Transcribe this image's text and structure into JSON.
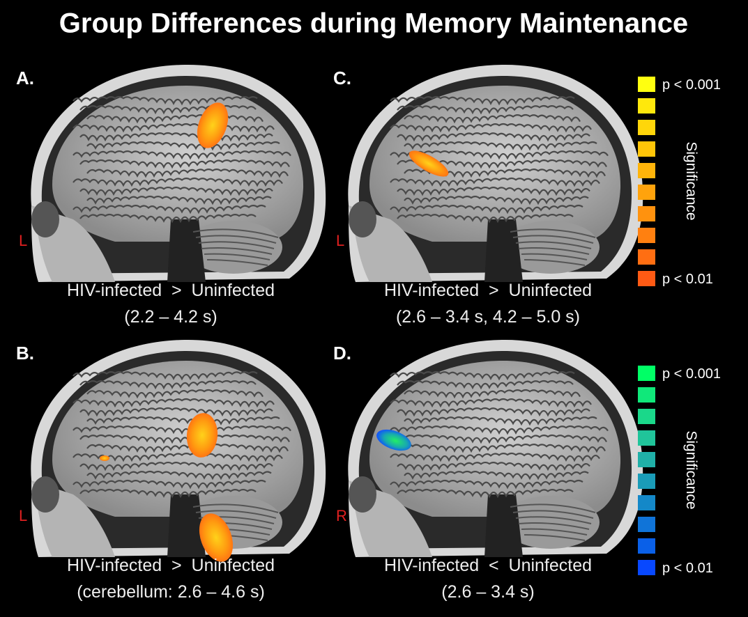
{
  "title": "Group Differences during Memory Maintenance",
  "panels": [
    {
      "letter": "A.",
      "side": "L",
      "caption": [
        "HIV-infected  >  Uninfected",
        "(2.2 – 4.2 s)"
      ]
    },
    {
      "letter": "C.",
      "side": "L",
      "caption": [
        "HIV-infected  >  Uninfected",
        "(2.6 – 3.4 s, 4.2 – 5.0 s)"
      ]
    },
    {
      "letter": "B.",
      "side": "L",
      "caption": [
        "HIV-infected  >  Uninfected",
        "(cerebellum: 2.6 – 4.6 s)"
      ]
    },
    {
      "letter": "D.",
      "side": "R",
      "caption": [
        "HIV-infected  <  Uninfected",
        "(2.6 – 3.4 s)"
      ]
    }
  ],
  "colorbars": [
    {
      "top": "p < 0.001",
      "bottom": "p < 0.01",
      "label": "Significance",
      "colors": [
        "#ffff10",
        "#ffe80c",
        "#ffd60a",
        "#ffc508",
        "#ffb40a",
        "#ffa30c",
        "#ff920e",
        "#ff8010",
        "#ff6e12",
        "#ff5a14"
      ]
    },
    {
      "top": "p < 0.001",
      "bottom": "p < 0.01",
      "label": "Significance",
      "colors": [
        "#00ff66",
        "#10e87a",
        "#1ad88a",
        "#20c49a",
        "#20b0a8",
        "#1a9cb8",
        "#1488c8",
        "#1074d8",
        "#0a60e8",
        "#0848ff"
      ]
    }
  ]
}
